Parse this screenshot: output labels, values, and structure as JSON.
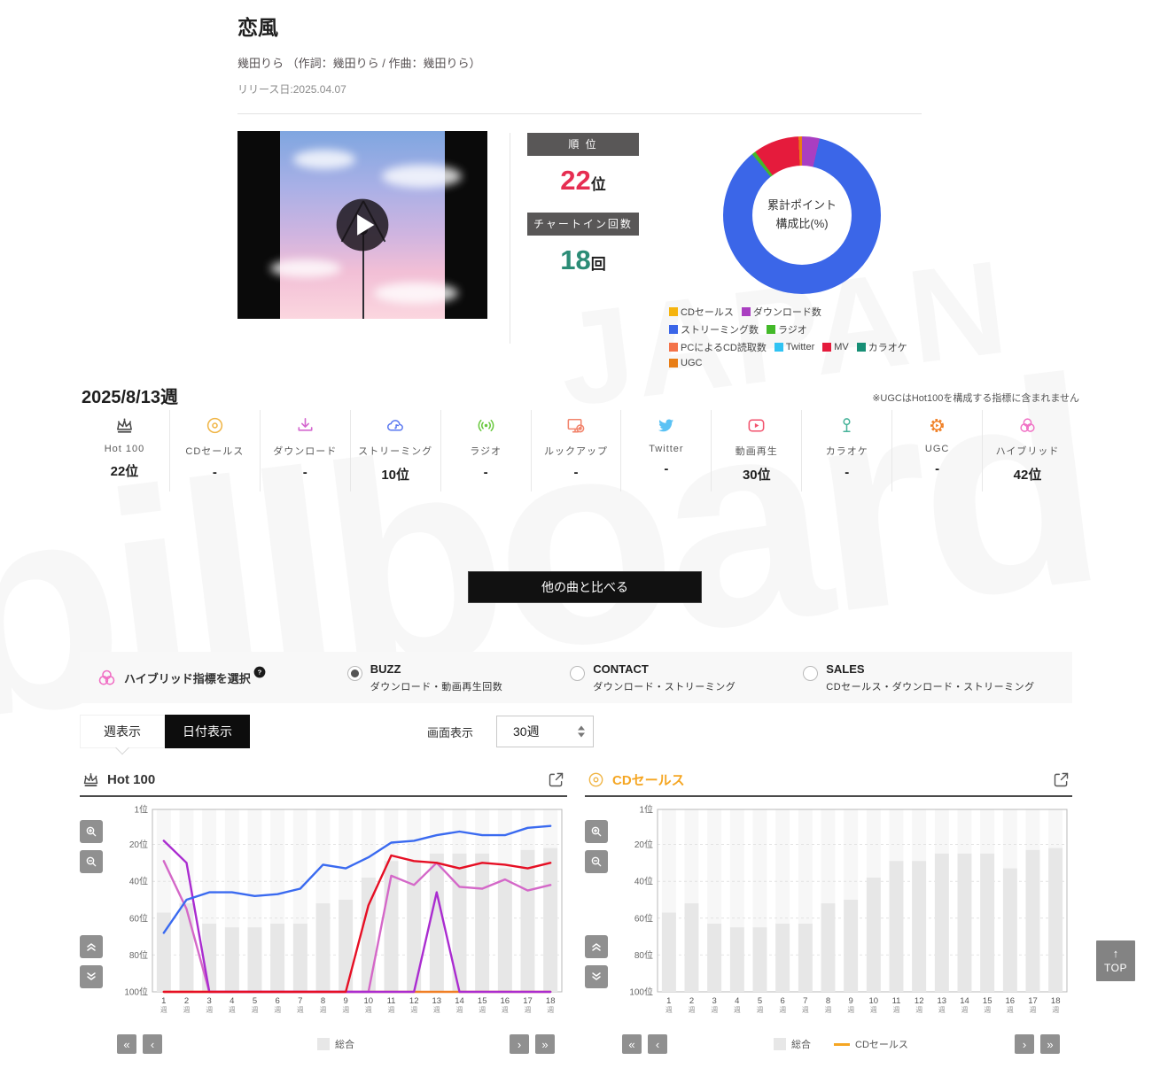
{
  "song": {
    "title": "恋風",
    "artist_line": "幾田りら （作詞：幾田りら / 作曲：幾田りら）",
    "release": "リリース日:2025.04.07"
  },
  "rank_panel": {
    "rank_header": "順 位",
    "rank_value": "22",
    "rank_unit": "位",
    "rank_color": "#e62e52",
    "chartin_header": "チャートイン回数",
    "chartin_value": "18",
    "chartin_unit": "回",
    "chartin_color": "#2b8c76"
  },
  "donut": {
    "center_line1": "累計ポイント",
    "center_line2": "構成比(%)",
    "segments": [
      {
        "label": "CDセールス",
        "color": "#f5b40f",
        "value": 0
      },
      {
        "label": "ダウンロード数",
        "color": "#a93ec1",
        "value": 3.6
      },
      {
        "label": "ストリーミング数",
        "color": "#3b66e8",
        "value": 85.5
      },
      {
        "label": "ラジオ",
        "color": "#43b929",
        "value": 0.8
      },
      {
        "label": "PCによるCD読取数",
        "color": "#f4734a",
        "value": 0
      },
      {
        "label": "Twitter",
        "color": "#30c3f3",
        "value": 0
      },
      {
        "label": "MV",
        "color": "#e51b3c",
        "value": 9.4
      },
      {
        "label": "カラオケ",
        "color": "#178f76",
        "value": 0
      },
      {
        "label": "UGC",
        "color": "#e87d15",
        "value": 0.7
      }
    ]
  },
  "week": {
    "label": "2025/8/13週",
    "note": "※UGCはHot100を構成する指標に含まれません"
  },
  "metrics": [
    {
      "id": "hot100",
      "label": "Hot 100",
      "value": "22位",
      "icon": "crown-icon",
      "color": "#4a4a4a"
    },
    {
      "id": "cd-sales",
      "label": "CDセールス",
      "value": "-",
      "icon": "cd-icon",
      "color": "#f0b546"
    },
    {
      "id": "download",
      "label": "ダウンロード",
      "value": "-",
      "icon": "download-icon",
      "color": "#d467cf"
    },
    {
      "id": "streaming",
      "label": "ストリーミング",
      "value": "10位",
      "icon": "streaming-icon",
      "color": "#5a78f0"
    },
    {
      "id": "radio",
      "label": "ラジオ",
      "value": "-",
      "icon": "radio-icon",
      "color": "#69c93e"
    },
    {
      "id": "lookup",
      "label": "ルックアップ",
      "value": "-",
      "icon": "lookup-icon",
      "color": "#f2836b"
    },
    {
      "id": "twitter",
      "label": "Twitter",
      "value": "-",
      "icon": "twitter-icon",
      "color": "#5bc2f4"
    },
    {
      "id": "video",
      "label": "動画再生",
      "value": "30位",
      "icon": "video-icon",
      "color": "#f2526d"
    },
    {
      "id": "karaoke",
      "label": "カラオケ",
      "value": "-",
      "icon": "karaoke-icon",
      "color": "#47b39a"
    },
    {
      "id": "ugc",
      "label": "UGC",
      "value": "-",
      "icon": "ugc-icon",
      "color": "#f07f24"
    },
    {
      "id": "hybrid",
      "label": "ハイブリッド",
      "value": "42位",
      "icon": "hybrid-icon",
      "color": "#f06ec4"
    }
  ],
  "compare_button": "他の曲と比べる",
  "hybrid_selector": {
    "label": "ハイブリッド指標を選択",
    "help": "?",
    "options": [
      {
        "name": "BUZZ",
        "desc": "ダウンロード・動画再生回数",
        "selected": true
      },
      {
        "name": "CONTACT",
        "desc": "ダウンロード・ストリーミング",
        "selected": false
      },
      {
        "name": "SALES",
        "desc": "CDセールス・ダウンロード・ストリーミング",
        "selected": false
      }
    ]
  },
  "display_controls": {
    "tab_week": "週表示",
    "tab_date": "日付表示",
    "screen_label": "画面表示",
    "screen_value": "30週"
  },
  "nav": {
    "first": "«",
    "prev": "‹",
    "next": "›",
    "last": "»"
  },
  "top_button": {
    "arrow": "↑",
    "label": "TOP"
  },
  "chart_data": [
    {
      "type": "bar+line",
      "title": "Hot 100",
      "title_color": "#333333",
      "icon": "crown-icon",
      "icon_color": "#4a4a4a",
      "categories": [
        "1",
        "2",
        "3",
        "4",
        "5",
        "6",
        "7",
        "8",
        "9",
        "10",
        "11",
        "12",
        "13",
        "14",
        "15",
        "16",
        "17",
        "18"
      ],
      "x_unit": "週",
      "ylabel": "順位",
      "ylim": [
        1,
        100
      ],
      "y_inverted": true,
      "ytick_values": [
        1,
        20,
        40,
        60,
        80,
        100
      ],
      "ytick_labels": [
        "1位",
        "20位",
        "40位",
        "60位",
        "80位",
        "100位"
      ],
      "bars": {
        "name": "総合",
        "color": "#e7e7e7",
        "values": [
          57,
          52,
          63,
          65,
          65,
          63,
          63,
          52,
          50,
          38,
          29,
          29,
          25,
          25,
          25,
          33,
          23,
          22
        ]
      },
      "series": [
        {
          "name": "UGC",
          "color": "#f07f24",
          "values": [
            100,
            100,
            100,
            100,
            100,
            100,
            100,
            100,
            100,
            100,
            100,
            100,
            100,
            100,
            100,
            100,
            100,
            100
          ]
        },
        {
          "name": "ハイブリッド",
          "color": "#d468c8",
          "values": [
            29,
            55,
            100,
            100,
            100,
            100,
            100,
            100,
            100,
            100,
            37,
            42,
            30,
            43,
            44,
            39,
            45,
            42
          ]
        },
        {
          "name": "ダウンロード",
          "color": "#aa2cd0",
          "values": [
            18,
            30,
            100,
            100,
            100,
            100,
            100,
            100,
            100,
            100,
            100,
            100,
            46,
            100,
            100,
            100,
            100,
            100
          ]
        },
        {
          "name": "動画再生",
          "color": "#e60f24",
          "values": [
            100,
            100,
            100,
            100,
            100,
            100,
            100,
            100,
            100,
            53,
            26,
            29,
            30,
            33,
            30,
            31,
            33,
            30
          ]
        },
        {
          "name": "ストリーミング",
          "color": "#3a6af0",
          "values": [
            68,
            50,
            46,
            46,
            48,
            47,
            44,
            31,
            33,
            27,
            19,
            18,
            15,
            13,
            15,
            15,
            11,
            10
          ]
        }
      ],
      "legend": [
        {
          "type": "bar",
          "color": "#e7e7e7",
          "label": "総合"
        }
      ]
    },
    {
      "type": "bar+line",
      "title": "CDセールス",
      "title_color": "#f5a623",
      "icon": "cd-icon",
      "icon_color": "#f0b546",
      "categories": [
        "1",
        "2",
        "3",
        "4",
        "5",
        "6",
        "7",
        "8",
        "9",
        "10",
        "11",
        "12",
        "13",
        "14",
        "15",
        "16",
        "17",
        "18"
      ],
      "x_unit": "週",
      "ylabel": "順位",
      "ylim": [
        1,
        100
      ],
      "y_inverted": true,
      "ytick_values": [
        1,
        20,
        40,
        60,
        80,
        100
      ],
      "ytick_labels": [
        "1位",
        "20位",
        "40位",
        "60位",
        "80位",
        "100位"
      ],
      "bars": {
        "name": "総合",
        "color": "#e7e7e7",
        "values": [
          57,
          52,
          63,
          65,
          65,
          63,
          63,
          52,
          50,
          38,
          29,
          29,
          25,
          25,
          25,
          33,
          23,
          22
        ]
      },
      "series": [
        {
          "name": "CDセールス",
          "color": "#f5a623",
          "values": [
            null,
            null,
            null,
            null,
            null,
            null,
            null,
            null,
            null,
            null,
            null,
            null,
            null,
            null,
            null,
            null,
            null,
            null
          ]
        }
      ],
      "legend": [
        {
          "type": "bar",
          "color": "#e7e7e7",
          "label": "総合"
        },
        {
          "type": "line",
          "color": "#f5a623",
          "label": "CDセールス"
        }
      ]
    }
  ]
}
